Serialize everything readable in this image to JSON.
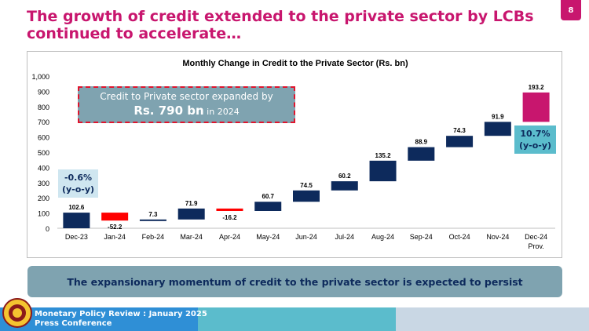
{
  "page": {
    "title": "The growth of credit extended to the private sector by LCBs continued to accelerate…",
    "page_number": "8",
    "banner": "The expansionary momentum of credit to the private sector is expected to persist",
    "footer_line1": "Monetary Policy Review : January 2025",
    "footer_line2": "Press Conference"
  },
  "callout": {
    "line1": "Credit to Private sector expanded by",
    "amount": "Rs. 790 bn",
    "suffix": " in 2024"
  },
  "left_box": {
    "pct": "-0.6%",
    "sub": "(y-o-y)"
  },
  "right_box": {
    "pct": "10.7%",
    "sub": "(y-o-y)"
  },
  "colors": {
    "increase": "#0d2a5c",
    "decrease": "#ff0000",
    "provisional": "#c8166e",
    "title": "#c8166e"
  },
  "chart_data": {
    "type": "waterfall",
    "title": "Monthly Change in Credit to the Private Sector (Rs. bn)",
    "categories": [
      "Dec-23",
      "Jan-24",
      "Feb-24",
      "Mar-24",
      "Apr-24",
      "May-24",
      "Jun-24",
      "Jul-24",
      "Aug-24",
      "Sep-24",
      "Oct-24",
      "Nov-24",
      "Dec-24"
    ],
    "category_sub": [
      "",
      "",
      "",
      "",
      "",
      "",
      "",
      "",
      "",
      "",
      "",
      "",
      "Prov."
    ],
    "values": [
      102.6,
      -52.2,
      7.3,
      71.9,
      -16.2,
      60.7,
      74.5,
      60.2,
      135.2,
      88.9,
      74.3,
      91.9,
      193.2
    ],
    "labels": [
      "102.6",
      "-52.2",
      "7.3",
      "71.9",
      "-16.2",
      "60.7",
      "74.5",
      "60.2",
      "135.2",
      "88.9",
      "74.3",
      "91.9",
      "193.2"
    ],
    "y_ticks": [
      "0",
      "100",
      "200",
      "300",
      "400",
      "500",
      "600",
      "700",
      "800",
      "900",
      "1,000"
    ],
    "ylim": [
      0,
      1000
    ]
  }
}
